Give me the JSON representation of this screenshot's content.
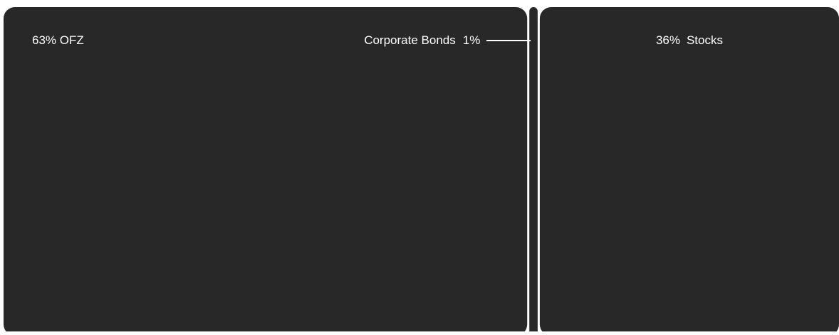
{
  "chart_data": {
    "type": "bar",
    "orientation": "horizontal-stacked-100",
    "segments": [
      {
        "name": "OFZ",
        "value": 63,
        "value_label": "63%",
        "label": "63% OFZ",
        "color": "#282828"
      },
      {
        "name": "Corporate Bonds",
        "value": 1,
        "value_label": "1%",
        "label": "Corporate Bonds  1%",
        "color": "#282828"
      },
      {
        "name": "Stocks",
        "value": 36,
        "value_label": "36%",
        "label": "36%  Stocks",
        "color": "#282828"
      }
    ],
    "total": 100,
    "legend": "none",
    "grid": false
  }
}
